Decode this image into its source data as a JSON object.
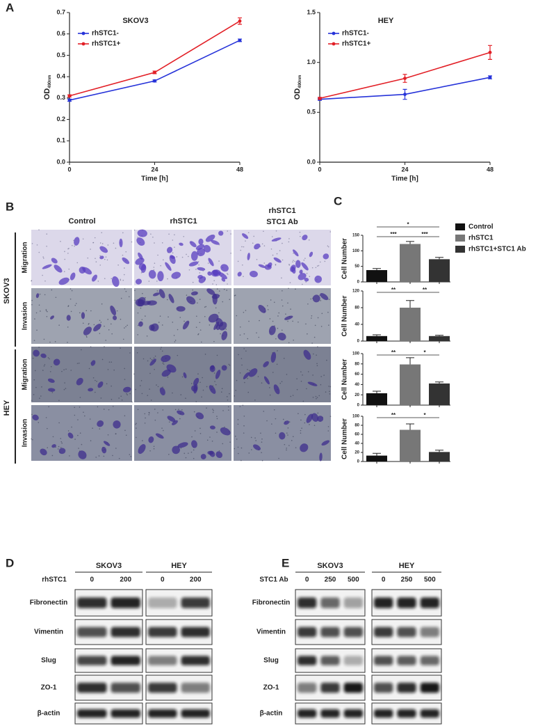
{
  "panel_labels": [
    "A",
    "B",
    "C",
    "D",
    "E"
  ],
  "chart_data": [
    {
      "type": "line",
      "title": "SKOV3",
      "x": [
        0,
        24,
        48
      ],
      "xlim": [
        0,
        48
      ],
      "xticks": [
        0,
        24,
        48
      ],
      "x_label": "Time [h]",
      "y_label": "OD",
      "y_label_subscript": "490nm",
      "ylim": [
        0,
        0.7
      ],
      "yticks": [
        {
          "value": 0,
          "label": "0.0"
        },
        0.1,
        0.2,
        0.3,
        0.4,
        0.5,
        0.6,
        0.7
      ],
      "legend": "upper-left",
      "series": [
        {
          "name": "rhSTC1-",
          "color": "#2633d9",
          "values": [
            0.29,
            0.38,
            0.57
          ],
          "errors": [
            0.005,
            0.005,
            0.006
          ]
        },
        {
          "name": "rhSTC1+",
          "color": "#e21f26",
          "values": [
            0.31,
            0.42,
            0.66
          ],
          "errors": [
            0.005,
            0.006,
            0.015
          ]
        }
      ]
    },
    {
      "type": "line",
      "title": "HEY",
      "x": [
        0,
        24,
        48
      ],
      "xlim": [
        0,
        48
      ],
      "xticks": [
        0,
        24,
        48
      ],
      "x_label": "Time [h]",
      "y_label": "OD",
      "y_label_subscript": "490nm",
      "ylim": [
        0,
        1.5
      ],
      "yticks": [
        {
          "value": 0,
          "label": "0.0"
        },
        0.5,
        {
          "value": 1,
          "label": "1.0"
        },
        1.5
      ],
      "legend": "upper-left",
      "series": [
        {
          "name": "rhSTC1-",
          "color": "#2633d9",
          "values": [
            0.63,
            0.68,
            0.85
          ],
          "errors": [
            0.01,
            0.05,
            0.015
          ]
        },
        {
          "name": "rhSTC1+",
          "color": "#e21f26",
          "values": [
            0.64,
            0.84,
            1.1
          ],
          "errors": [
            0.01,
            0.04,
            0.07
          ]
        }
      ]
    },
    {
      "type": "bar",
      "y_label": "Cell Number",
      "ylim": [
        0,
        150
      ],
      "yticks": [
        0,
        50,
        100,
        150
      ],
      "values": [
        38,
        122,
        73
      ],
      "errors": [
        5,
        8,
        6
      ],
      "colors": [
        "#111111",
        "#777777",
        "#333333"
      ],
      "comparisons": [
        {
          "label": "*",
          "pair": [
            0,
            2
          ]
        },
        {
          "label": "***",
          "pair": [
            0,
            1
          ]
        },
        {
          "label": "***",
          "pair": [
            1,
            2
          ]
        }
      ]
    },
    {
      "type": "bar",
      "y_label": "Cell Number",
      "ylim": [
        0,
        120
      ],
      "yticks": [
        0,
        40,
        80,
        120
      ],
      "values": [
        12,
        80,
        12
      ],
      "errors": [
        3,
        17,
        2
      ],
      "colors": [
        "#111111",
        "#777777",
        "#333333"
      ],
      "comparisons": [
        {
          "label": "**",
          "pair": [
            0,
            1
          ]
        },
        {
          "label": "**",
          "pair": [
            1,
            2
          ]
        }
      ]
    },
    {
      "type": "bar",
      "y_label": "Cell Number",
      "ylim": [
        0,
        100
      ],
      "yticks": [
        0,
        20,
        40,
        60,
        80,
        100
      ],
      "values": [
        23,
        79,
        42
      ],
      "errors": [
        4,
        13,
        3
      ],
      "colors": [
        "#111111",
        "#777777",
        "#333333"
      ],
      "comparisons": [
        {
          "label": "**",
          "pair": [
            0,
            1
          ]
        },
        {
          "label": "*",
          "pair": [
            1,
            2
          ]
        }
      ]
    },
    {
      "type": "bar",
      "y_label": "Cell Number",
      "ylim": [
        0,
        100
      ],
      "yticks": [
        0,
        20,
        40,
        60,
        80,
        100
      ],
      "values": [
        13,
        70,
        21
      ],
      "errors": [
        5,
        13,
        4
      ],
      "colors": [
        "#111111",
        "#777777",
        "#333333"
      ],
      "comparisons": [
        {
          "label": "**",
          "pair": [
            0,
            1
          ]
        },
        {
          "label": "*",
          "pair": [
            1,
            2
          ]
        }
      ]
    }
  ],
  "panel_c_legend": {
    "labels": [
      "Control",
      "rhSTC1",
      "rhSTC1+STC1 Ab"
    ],
    "colors": [
      "#111111",
      "#777777",
      "#333333"
    ]
  },
  "panel_b": {
    "columns": [
      [
        "Control"
      ],
      [
        "rhSTC1"
      ],
      [
        "rhSTC1",
        "STC1 Ab"
      ]
    ],
    "groups": [
      {
        "name": "SKOV3",
        "rows": [
          "Migration",
          "Invasion"
        ]
      },
      {
        "name": "HEY",
        "rows": [
          "Migration",
          "Invasion"
        ]
      }
    ]
  },
  "panel_d": {
    "cell_lines": [
      "SKOV3",
      "HEY"
    ],
    "treatment": "rhSTC1",
    "lanes": [
      [
        0,
        200
      ],
      [
        0,
        200
      ]
    ],
    "proteins": [
      "Fibronectin",
      "Vimentin",
      "Slug",
      "ZO-1",
      "β-actin"
    ]
  },
  "panel_e": {
    "cell_lines": [
      "SKOV3",
      "HEY"
    ],
    "treatment": "STC1 Ab",
    "lanes": [
      [
        0,
        250,
        500
      ],
      [
        0,
        250,
        500
      ]
    ],
    "proteins": [
      "Fibronectin",
      "Vimentin",
      "Slug",
      "ZO-1",
      "β-actin"
    ]
  }
}
